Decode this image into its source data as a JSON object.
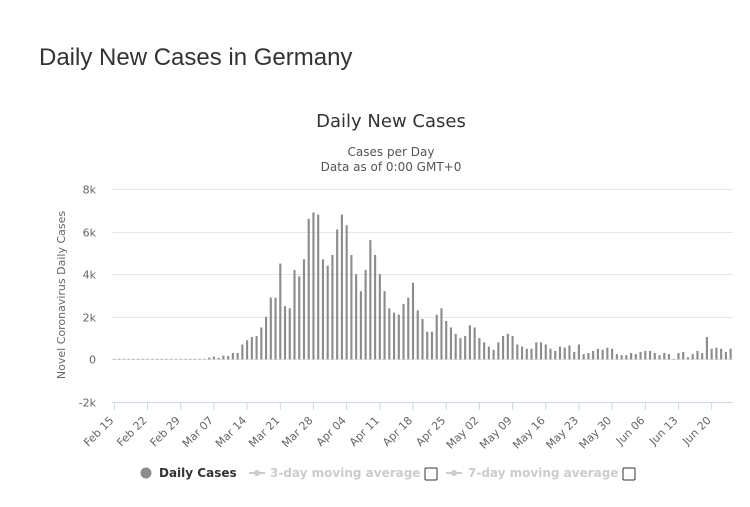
{
  "page": {
    "title": "Daily New Cases in Germany"
  },
  "chart_data": {
    "type": "bar",
    "title": "Daily New Cases",
    "subtitle_line1": "Cases per Day",
    "subtitle_line2": "Data as of 0:00 GMT+0",
    "ylabel": "Novel Coronavirus Daily Cases",
    "xlabel": "",
    "ylim": [
      -2000,
      8000
    ],
    "ytick_values": [
      -2000,
      0,
      2000,
      4000,
      6000,
      8000
    ],
    "ytick_labels": [
      "-2k",
      "0",
      "2k",
      "4k",
      "6k",
      "8k"
    ],
    "xtick_indices": [
      0,
      7,
      14,
      21,
      28,
      35,
      42,
      49,
      56,
      63,
      70,
      77,
      84,
      91,
      98,
      105,
      112,
      119,
      126
    ],
    "xtick_labels": [
      "Feb 15",
      "Feb 22",
      "Feb 29",
      "Mar 07",
      "Mar 14",
      "Mar 21",
      "Mar 28",
      "Apr 04",
      "Apr 11",
      "Apr 18",
      "Apr 25",
      "May 02",
      "May 09",
      "May 16",
      "May 23",
      "May 30",
      "Jun 06",
      "Jun 13",
      "Jun 20"
    ],
    "series": [
      {
        "name": "Daily Cases",
        "color": "#8c8c8c",
        "start_date": "Feb 15",
        "values": [
          0,
          0,
          0,
          0,
          0,
          0,
          0,
          0,
          0,
          0,
          0,
          0,
          0,
          0,
          0,
          0,
          0,
          0,
          0,
          0,
          80,
          130,
          70,
          180,
          160,
          300,
          300,
          700,
          900,
          1050,
          1100,
          1500,
          2000,
          2900,
          2900,
          4500,
          2500,
          2400,
          4200,
          3900,
          4700,
          6600,
          6900,
          6800,
          4700,
          4400,
          4900,
          6100,
          6800,
          6300,
          4900,
          4000,
          3200,
          4200,
          5600,
          4900,
          4000,
          3200,
          2400,
          2200,
          2100,
          2600,
          2900,
          3600,
          2300,
          1900,
          1300,
          1300,
          2100,
          2400,
          1800,
          1500,
          1200,
          1000,
          1100,
          1600,
          1500,
          1000,
          800,
          600,
          450,
          800,
          1100,
          1200,
          1100,
          700,
          600,
          500,
          500,
          800,
          800,
          700,
          500,
          400,
          600,
          550,
          650,
          350,
          700,
          250,
          300,
          400,
          500,
          450,
          550,
          500,
          250,
          200,
          200,
          300,
          250,
          350,
          400,
          400,
          300,
          200,
          300,
          250,
          0,
          300,
          350,
          100,
          250,
          400,
          300,
          1050,
          500,
          550,
          500,
          350,
          500
        ]
      }
    ],
    "legend": [
      {
        "label": "Daily Cases",
        "color": "#8c8c8c",
        "enabled": true
      },
      {
        "label": "3-day moving average",
        "color": "#cccccc",
        "enabled": false
      },
      {
        "label": "7-day moving average",
        "color": "#cccccc",
        "enabled": false
      }
    ],
    "grid": true
  }
}
